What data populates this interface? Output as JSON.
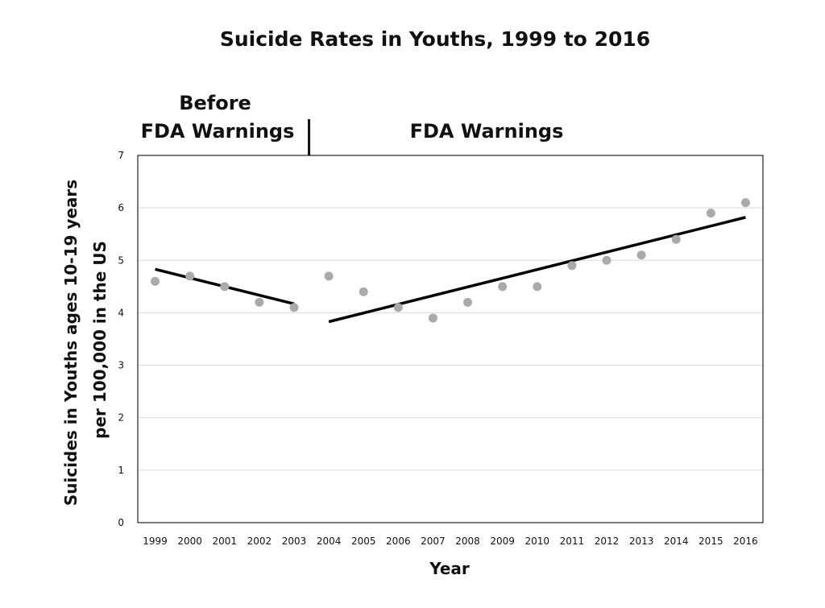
{
  "chart_data": {
    "type": "scatter",
    "title": "Suicide Rates in Youths, 1999 to 2016",
    "xlabel": "Year",
    "ylabel_lines": [
      "Suicides in Youths ages 10-19 years",
      "per 100,000 in the US"
    ],
    "categories": [
      "1999",
      "2000",
      "2001",
      "2002",
      "2003",
      "2004",
      "2005",
      "2006",
      "2007",
      "2008",
      "2009",
      "2010",
      "2011",
      "2012",
      "2013",
      "2014",
      "2015",
      "2016"
    ],
    "values": [
      4.6,
      4.7,
      4.5,
      4.2,
      4.1,
      4.7,
      4.4,
      4.1,
      3.9,
      4.2,
      4.5,
      4.5,
      4.9,
      5.0,
      5.1,
      5.4,
      5.9,
      6.1
    ],
    "ylim": [
      0,
      7
    ],
    "yticks": [
      0,
      1,
      2,
      3,
      4,
      5,
      6,
      7
    ],
    "grid": true,
    "marker_color": "#aaaaaa",
    "trend_color": "#000000",
    "trendlines": [
      {
        "from": "1999",
        "to": "2003",
        "start": 4.83,
        "end": 4.17
      },
      {
        "from": "2004",
        "to": "2016",
        "start": 3.83,
        "end": 5.82
      }
    ],
    "annotations": {
      "before_line1": "Before",
      "before_line2": "FDA Warnings",
      "after": "FDA Warnings",
      "divider_after_year": "2003"
    }
  }
}
